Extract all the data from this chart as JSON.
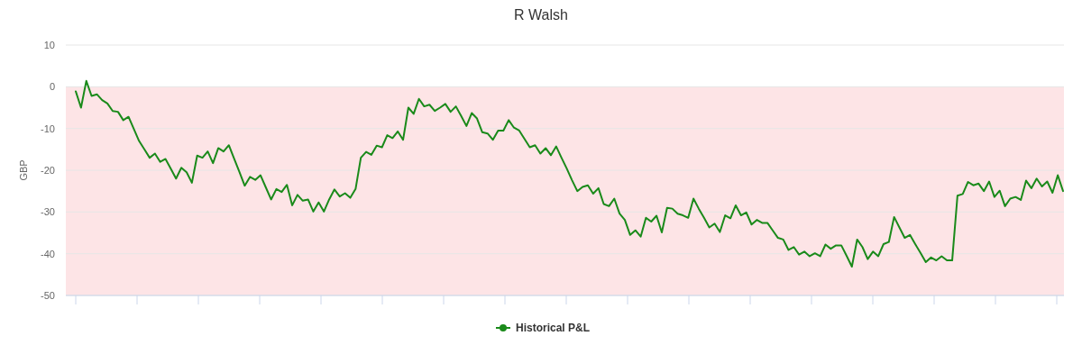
{
  "chart_data": {
    "type": "line",
    "title": "R Walsh",
    "ylabel": "GBP",
    "categories": [
      null,
      null,
      null,
      null,
      null,
      null,
      null,
      null,
      null,
      null,
      null,
      null,
      null,
      null,
      null,
      null,
      null,
      null,
      null,
      null,
      null,
      null,
      null,
      null,
      null,
      null,
      null,
      null,
      null,
      null,
      null,
      null,
      null,
      null,
      null,
      null,
      null,
      null,
      null,
      null,
      null,
      null,
      null,
      null,
      null,
      null,
      null,
      null,
      null,
      null,
      null,
      null,
      null,
      null,
      null,
      null,
      null,
      null,
      null,
      null,
      null,
      null,
      null,
      null,
      null,
      null,
      null,
      null,
      null,
      null,
      null,
      null,
      null,
      null,
      null,
      null,
      null,
      null,
      null,
      null,
      null,
      null,
      null,
      null,
      null,
      null,
      null,
      null,
      null,
      null,
      null,
      null,
      null,
      null,
      null,
      null,
      null,
      null,
      null,
      null,
      null,
      null,
      null,
      null,
      null,
      null,
      null,
      null,
      null,
      null,
      null,
      null,
      null,
      null,
      null,
      null,
      null,
      null,
      null,
      null,
      null,
      null,
      null,
      null,
      null,
      null,
      null,
      null,
      null,
      null,
      null,
      null,
      null,
      null,
      null,
      null,
      null,
      null,
      null,
      null,
      null,
      null,
      null,
      null,
      null,
      null,
      null,
      null,
      null,
      null,
      null,
      null,
      null,
      null,
      null,
      null,
      null,
      null,
      null,
      null,
      null,
      null,
      null,
      null,
      null,
      null,
      null,
      null,
      null,
      null,
      null,
      null,
      null,
      null,
      null,
      null,
      null,
      null,
      null,
      null,
      null,
      null,
      null,
      null,
      null,
      null,
      null,
      null
    ],
    "series": [
      {
        "name": "Historical P&L",
        "color": "#1a8a1a",
        "values": [
          -1.1,
          -5,
          1.4,
          -2.2,
          -1.8,
          -3.2,
          -4,
          -5.8,
          -6,
          -8,
          -7.2,
          -10.1,
          -13,
          -15,
          -17,
          -16,
          -18,
          -17.3,
          -19.6,
          -22,
          -19.4,
          -20.5,
          -23,
          -16.5,
          -17,
          -15.5,
          -18.3,
          -14.7,
          -15.5,
          -14,
          -17.2,
          -20.4,
          -23.7,
          -21.6,
          -22.3,
          -21.2,
          -24.1,
          -27,
          -24.5,
          -25.2,
          -23.5,
          -28.4,
          -25.9,
          -27.3,
          -27,
          -29.9,
          -27.7,
          -29.9,
          -27,
          -24.6,
          -26.3,
          -25.5,
          -26.6,
          -24.5,
          -17,
          -15.6,
          -16.3,
          -14.1,
          -14.5,
          -11.6,
          -12.3,
          -10.7,
          -12.7,
          -5,
          -6.5,
          -2.9,
          -4.7,
          -4.3,
          -5.8,
          -5,
          -4.1,
          -6,
          -4.7,
          -7,
          -9.4,
          -6.3,
          -7.6,
          -10.9,
          -11.2,
          -12.7,
          -10.5,
          -10.5,
          -8,
          -9.8,
          -10.5,
          -12.5,
          -14.5,
          -14,
          -16,
          -14.7,
          -16.4,
          -14.3,
          -17,
          -19.6,
          -22.4,
          -25,
          -24,
          -23.6,
          -25.6,
          -24.3,
          -28.1,
          -28.6,
          -26.8,
          -30.4,
          -31.9,
          -35.5,
          -34.4,
          -35.9,
          -31.4,
          -32.3,
          -30.9,
          -34.9,
          -29,
          -29.2,
          -30.4,
          -30.8,
          -31.4,
          -26.8,
          -29.2,
          -31.4,
          -33.7,
          -32.8,
          -34.8,
          -30.8,
          -31.5,
          -28.4,
          -30.8,
          -30.1,
          -33,
          -31.9,
          -32.6,
          -32.6,
          -34.4,
          -36.2,
          -36.6,
          -39.1,
          -38.4,
          -40.2,
          -39.5,
          -40.6,
          -39.9,
          -40.6,
          -37.8,
          -38.8,
          -38,
          -38,
          -40.5,
          -43.1,
          -36.6,
          -38.4,
          -41.3,
          -39.5,
          -40.6,
          -37.7,
          -37.2,
          -31.2,
          -33.7,
          -36.2,
          -35.5,
          -37.7,
          -39.8,
          -42,
          -40.9,
          -41.6,
          -40.6,
          -41.6,
          -41.6,
          -26.1,
          -25.7,
          -22.8,
          -23.6,
          -23.2,
          -25,
          -22.7,
          -26.4,
          -24.9,
          -28.6,
          -26.8,
          -26.4,
          -27.1,
          -22.5,
          -24.3,
          -22,
          -23.9,
          -22.7,
          -25.4,
          -21.2,
          -25
        ]
      }
    ],
    "ylim": [
      -50,
      10
    ],
    "yticks": [
      -50,
      -40,
      -30,
      -20,
      -10,
      0,
      10
    ],
    "grid": "y",
    "legend": "bottom",
    "bands": [
      {
        "axis": "y",
        "from": -50,
        "to": 0,
        "color": "#fde4e6"
      }
    ]
  }
}
